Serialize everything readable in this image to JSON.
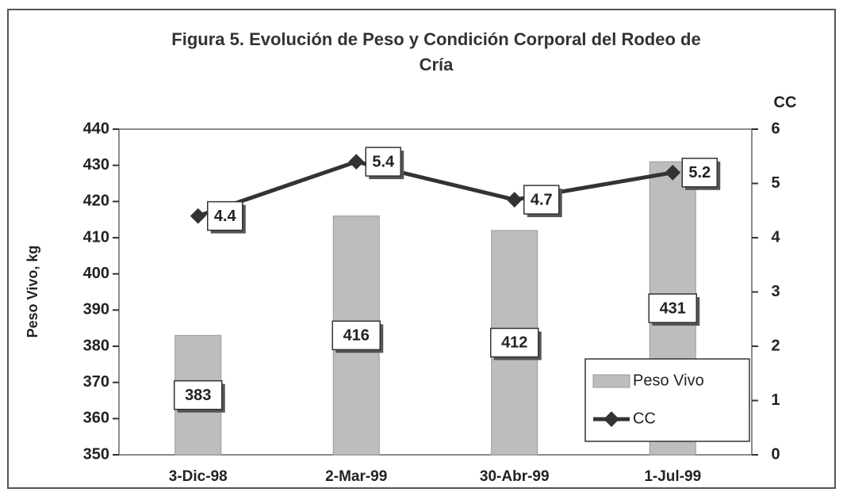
{
  "chart_data": {
    "type": "bar_line",
    "title": "Figura 5. Evolución de Peso y Condición Corporal del Rodeo de Cría",
    "ylabel": "Peso Vivo, kg",
    "y2label": "CC",
    "categories": [
      "3-Dic-98",
      "2-Mar-99",
      "30-Abr-99",
      "1-Jul-99"
    ],
    "series": [
      {
        "name": "Peso Vivo",
        "type": "bar",
        "color": "#bdbdbd",
        "values": [
          383,
          416,
          412,
          431
        ]
      },
      {
        "name": "CC",
        "type": "line",
        "axis": "y2",
        "color": "#333333",
        "values": [
          4.4,
          5.4,
          4.7,
          5.2
        ]
      }
    ],
    "ylim": [
      350,
      440
    ],
    "yticks": [
      350,
      360,
      370,
      380,
      390,
      400,
      410,
      420,
      430,
      440
    ],
    "y2lim": [
      0,
      6
    ],
    "y2ticks": [
      0,
      1,
      2,
      3,
      4,
      5,
      6
    ],
    "legend": "lower right"
  }
}
